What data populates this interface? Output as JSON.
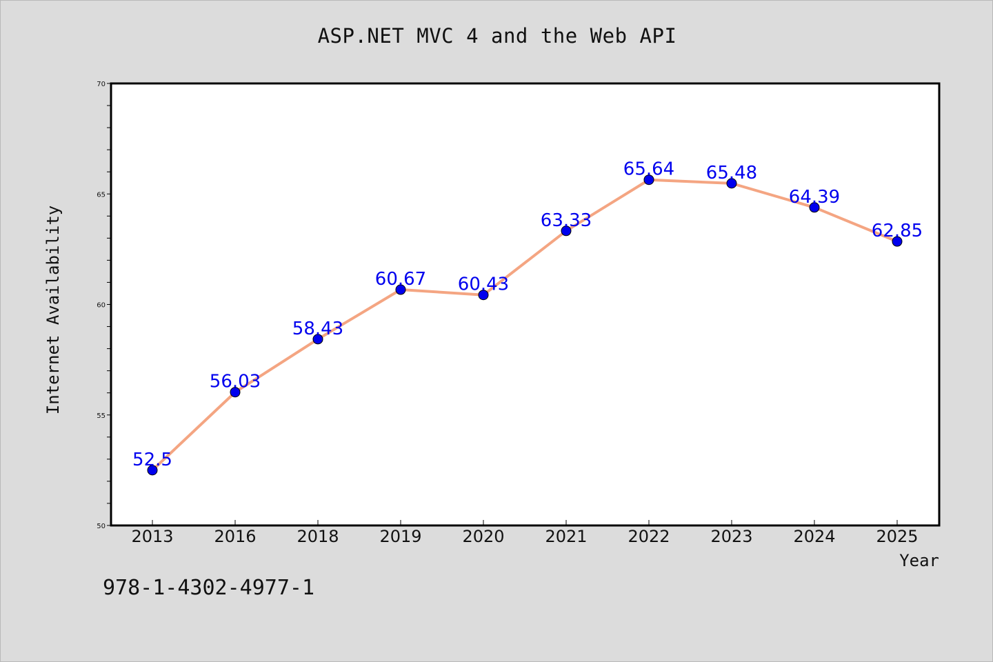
{
  "chart_data": {
    "type": "line",
    "title": "ASP.NET MVC 4 and the Web API",
    "xlabel": "Year",
    "ylabel": "Internet Availability",
    "categories": [
      "2013",
      "2016",
      "2018",
      "2019",
      "2020",
      "2021",
      "2022",
      "2023",
      "2024",
      "2025"
    ],
    "series": [
      {
        "values": [
          52.5,
          56.03,
          58.43,
          60.67,
          60.43,
          63.33,
          65.64,
          65.48,
          64.39,
          62.85
        ],
        "labels": [
          "52.5",
          "56.03",
          "58.43",
          "60.67",
          "60.43",
          "63.33",
          "65.64",
          "65.48",
          "64.39",
          "62.85"
        ]
      }
    ],
    "ylim": [
      50,
      70
    ],
    "y_ticks": [
      "50",
      "55",
      "60",
      "65",
      "70"
    ],
    "grid": false,
    "line_color": "#f4a582",
    "marker_color": "#0000ee",
    "label_color": "#0000ee"
  },
  "footer": {
    "isbn": "978-1-4302-4977-1"
  }
}
